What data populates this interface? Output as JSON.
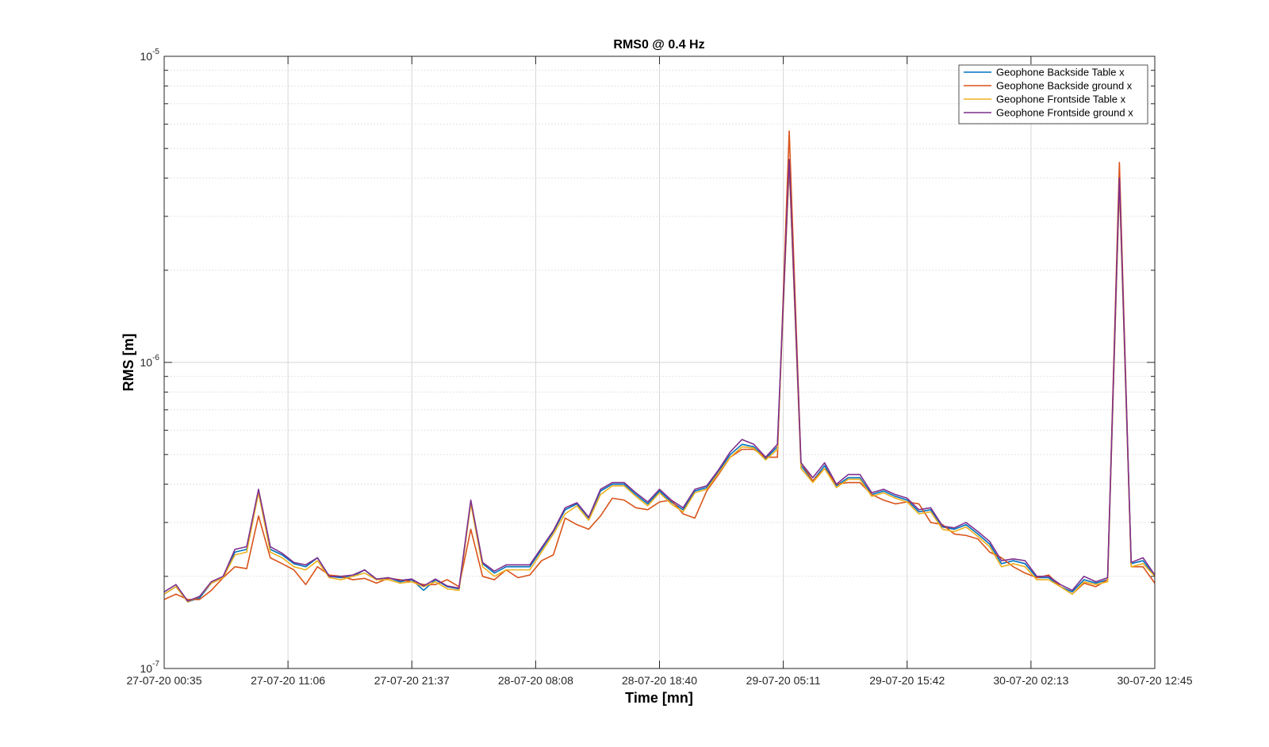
{
  "chart_data": {
    "type": "line",
    "title": "RMS0 @ 0.4 Hz",
    "xlabel": "Time [mn]",
    "ylabel": "RMS [m]",
    "yscale": "log",
    "ylim": [
      1e-07,
      1e-05
    ],
    "y_ticks": [
      {
        "exp": "-7",
        "value": 1e-07
      },
      {
        "exp": "-6",
        "value": 1e-06
      },
      {
        "exp": "-5",
        "value": 1e-05
      }
    ],
    "y_tick_base": "10",
    "xlim": [
      "27-07-20 00:35",
      "30-07-20 12:45"
    ],
    "x_ticks": [
      "27-07-20 00:35",
      "27-07-20 11:06",
      "27-07-20 21:37",
      "28-07-20 08:08",
      "28-07-20 18:40",
      "29-07-20 05:11",
      "29-07-20 15:42",
      "30-07-20 02:13",
      "30-07-20 12:45"
    ],
    "grid": true,
    "legend_position": "top-right",
    "colors": {
      "backside_table": "#0072BD",
      "backside_ground": "#D95319",
      "frontside_table": "#EDB120",
      "frontside_ground": "#7E2F8E"
    },
    "series": [
      {
        "name": "Geophone Backside Table x",
        "color": "#0072BD",
        "values": [
          1.75e-07,
          1.85e-07,
          1.65e-07,
          1.7e-07,
          1.9e-07,
          1.98e-07,
          2.4e-07,
          2.45e-07,
          3.8e-07,
          2.45e-07,
          2.35e-07,
          2.2e-07,
          2.15e-07,
          2.3e-07,
          2e-07,
          1.98e-07,
          2e-07,
          2.1e-07,
          1.95e-07,
          1.98e-07,
          1.92e-07,
          1.95e-07,
          1.8e-07,
          1.95e-07,
          1.85e-07,
          1.82e-07,
          3.5e-07,
          2.2e-07,
          2.05e-07,
          2.15e-07,
          2.15e-07,
          2.15e-07,
          2.45e-07,
          2.8e-07,
          3.3e-07,
          3.45e-07,
          3.1e-07,
          3.8e-07,
          4e-07,
          4e-07,
          3.7e-07,
          3.45e-07,
          3.8e-07,
          3.5e-07,
          3.3e-07,
          3.8e-07,
          3.9e-07,
          4.4e-07,
          5e-07,
          5.4e-07,
          5.3e-07,
          4.85e-07,
          5.3e-07,
          4.5e-06,
          4.6e-07,
          4.1e-07,
          4.6e-07,
          3.95e-07,
          4.2e-07,
          4.2e-07,
          3.7e-07,
          3.8e-07,
          3.65e-07,
          3.55e-07,
          3.25e-07,
          3.3e-07,
          2.9e-07,
          2.85e-07,
          2.95e-07,
          2.75e-07,
          2.55e-07,
          2.2e-07,
          2.25e-07,
          2.2e-07,
          1.98e-07,
          1.98e-07,
          1.85e-07,
          1.78e-07,
          1.95e-07,
          1.9e-07,
          1.95e-07,
          3.9e-06,
          2.2e-07,
          2.25e-07,
          2e-07
        ]
      },
      {
        "name": "Geophone Backside ground x",
        "color": "#D95319",
        "values": [
          1.68e-07,
          1.75e-07,
          1.68e-07,
          1.68e-07,
          1.8e-07,
          1.98e-07,
          2.15e-07,
          2.12e-07,
          3.15e-07,
          2.3e-07,
          2.2e-07,
          2.1e-07,
          1.88e-07,
          2.15e-07,
          2.02e-07,
          2e-07,
          1.95e-07,
          1.97e-07,
          1.9e-07,
          1.97e-07,
          1.95e-07,
          1.92e-07,
          1.88e-07,
          1.88e-07,
          1.95e-07,
          1.85e-07,
          2.85e-07,
          2e-07,
          1.95e-07,
          2.1e-07,
          1.98e-07,
          2.02e-07,
          2.25e-07,
          2.35e-07,
          3.1e-07,
          2.95e-07,
          2.85e-07,
          3.15e-07,
          3.6e-07,
          3.55e-07,
          3.35e-07,
          3.3e-07,
          3.5e-07,
          3.55e-07,
          3.2e-07,
          3.1e-07,
          3.8e-07,
          4.3e-07,
          4.9e-07,
          5.2e-07,
          5.2e-07,
          4.9e-07,
          4.9e-07,
          5.7e-06,
          4.7e-07,
          4.1e-07,
          4.5e-07,
          4e-07,
          4.05e-07,
          4.05e-07,
          3.7e-07,
          3.55e-07,
          3.45e-07,
          3.5e-07,
          3.45e-07,
          3e-07,
          2.95e-07,
          2.75e-07,
          2.72e-07,
          2.65e-07,
          2.4e-07,
          2.3e-07,
          2.15e-07,
          2.05e-07,
          1.98e-07,
          2.02e-07,
          1.85e-07,
          1.75e-07,
          1.9e-07,
          1.85e-07,
          1.95e-07,
          4.5e-06,
          2.15e-07,
          2.15e-07,
          1.9e-07
        ]
      },
      {
        "name": "Geophone Frontside Table x",
        "color": "#EDB120",
        "values": [
          1.75e-07,
          1.85e-07,
          1.65e-07,
          1.72e-07,
          1.9e-07,
          1.98e-07,
          2.35e-07,
          2.4e-07,
          3.75e-07,
          2.4e-07,
          2.3e-07,
          2.15e-07,
          2.1e-07,
          2.25e-07,
          1.98e-07,
          1.95e-07,
          2e-07,
          2.05e-07,
          1.95e-07,
          1.95e-07,
          1.9e-07,
          1.92e-07,
          1.85e-07,
          1.92e-07,
          1.82e-07,
          1.8e-07,
          3.45e-07,
          2.15e-07,
          2e-07,
          2.1e-07,
          2.1e-07,
          2.1e-07,
          2.4e-07,
          2.75e-07,
          3.2e-07,
          3.4e-07,
          3.05e-07,
          3.7e-07,
          3.95e-07,
          3.95e-07,
          3.65e-07,
          3.4e-07,
          3.75e-07,
          3.45e-07,
          3.25e-07,
          3.75e-07,
          3.85e-07,
          4.35e-07,
          4.9e-07,
          5.3e-07,
          5.25e-07,
          4.8e-07,
          5.2e-07,
          4.4e-06,
          4.5e-07,
          4.05e-07,
          4.5e-07,
          3.9e-07,
          4.15e-07,
          4.15e-07,
          3.65e-07,
          3.75e-07,
          3.6e-07,
          3.5e-07,
          3.2e-07,
          3.25e-07,
          2.85e-07,
          2.8e-07,
          2.9e-07,
          2.7e-07,
          2.5e-07,
          2.15e-07,
          2.2e-07,
          2.15e-07,
          1.95e-07,
          1.95e-07,
          1.85e-07,
          1.75e-07,
          1.92e-07,
          1.88e-07,
          1.92e-07,
          3.8e-06,
          2.15e-07,
          2.2e-07,
          2e-07
        ]
      },
      {
        "name": "Geophone Frontside ground x",
        "color": "#7E2F8E",
        "values": [
          1.78e-07,
          1.88e-07,
          1.66e-07,
          1.72e-07,
          1.92e-07,
          2e-07,
          2.45e-07,
          2.5e-07,
          3.85e-07,
          2.5e-07,
          2.38e-07,
          2.22e-07,
          2.18e-07,
          2.3e-07,
          2e-07,
          2e-07,
          2.02e-07,
          2.1e-07,
          1.96e-07,
          1.98e-07,
          1.94e-07,
          1.96e-07,
          1.86e-07,
          1.96e-07,
          1.86e-07,
          1.83e-07,
          3.55e-07,
          2.22e-07,
          2.08e-07,
          2.18e-07,
          2.18e-07,
          2.18e-07,
          2.48e-07,
          2.82e-07,
          3.35e-07,
          3.48e-07,
          3.12e-07,
          3.85e-07,
          4.05e-07,
          4.05e-07,
          3.75e-07,
          3.5e-07,
          3.85e-07,
          3.55e-07,
          3.35e-07,
          3.85e-07,
          3.95e-07,
          4.45e-07,
          5.1e-07,
          5.6e-07,
          5.4e-07,
          4.9e-07,
          5.4e-07,
          4.6e-06,
          4.7e-07,
          4.2e-07,
          4.7e-07,
          4e-07,
          4.3e-07,
          4.3e-07,
          3.75e-07,
          3.85e-07,
          3.7e-07,
          3.6e-07,
          3.3e-07,
          3.35e-07,
          2.92e-07,
          2.88e-07,
          3e-07,
          2.8e-07,
          2.6e-07,
          2.25e-07,
          2.28e-07,
          2.25e-07,
          2e-07,
          2e-07,
          1.88e-07,
          1.8e-07,
          2e-07,
          1.92e-07,
          1.98e-07,
          4e-06,
          2.22e-07,
          2.3e-07,
          2.02e-07
        ]
      }
    ]
  }
}
